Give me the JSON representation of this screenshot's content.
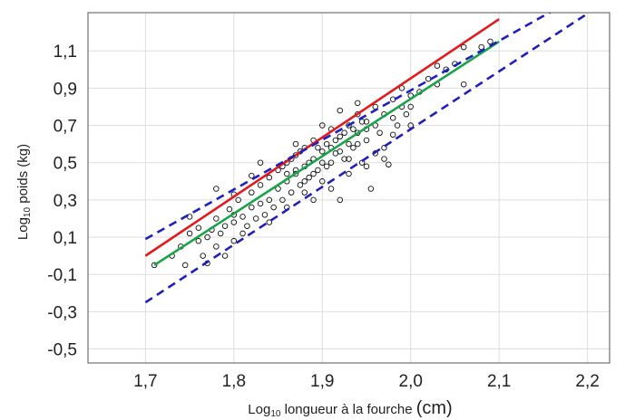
{
  "chart_data": {
    "type": "scatter",
    "xlabel": {
      "prefix": "Log",
      "sub": "10",
      "text": " longueur à la fourche ",
      "unit": "(cm)"
    },
    "ylabel": {
      "prefix": "Log",
      "sub": "10",
      "text": " poids (kg)"
    },
    "xlim": [
      1.635,
      2.225
    ],
    "ylim": [
      -0.575,
      1.305
    ],
    "x_ticks": [
      "1,7",
      "1,8",
      "1,9",
      "2,0",
      "2,1",
      "2,2"
    ],
    "x_tick_values": [
      1.7,
      1.8,
      1.9,
      2.0,
      2.1,
      2.2
    ],
    "y_ticks": [
      "1,1",
      "0,9",
      "0,7",
      "0,5",
      "0,3",
      "0,1",
      "-0,1",
      "-0,3",
      "-0,5"
    ],
    "y_tick_values": [
      1.1,
      0.9,
      0.7,
      0.5,
      0.3,
      0.1,
      -0.1,
      -0.3,
      -0.5
    ],
    "grid": true,
    "colors": {
      "red_line": "#e31a1c",
      "green_line": "#1aa34a",
      "dashed_lines": "#1f1fbf",
      "points": "#111111",
      "grid": "#dddddd",
      "frame": "#555555"
    },
    "lines": [
      {
        "style": "solid",
        "color": "#e31a1c",
        "x": [
          1.7,
          2.1
        ],
        "y": [
          0.0,
          1.27
        ]
      },
      {
        "style": "solid",
        "color": "#1aa34a",
        "x": [
          1.71,
          2.1
        ],
        "y": [
          -0.05,
          1.15
        ]
      },
      {
        "style": "dashed",
        "color": "#1f1fbf",
        "x": [
          1.7,
          2.17
        ],
        "y": [
          0.09,
          1.34
        ]
      },
      {
        "style": "dashed",
        "color": "#1f1fbf",
        "x": [
          1.7,
          2.2
        ],
        "y": [
          -0.25,
          1.3
        ]
      }
    ],
    "points": [
      [
        1.71,
        -0.05
      ],
      [
        1.73,
        0.0
      ],
      [
        1.74,
        0.05
      ],
      [
        1.745,
        -0.05
      ],
      [
        1.75,
        0.12
      ],
      [
        1.75,
        0.21
      ],
      [
        1.76,
        0.08
      ],
      [
        1.765,
        0.0
      ],
      [
        1.77,
        0.1
      ],
      [
        1.77,
        -0.04
      ],
      [
        1.775,
        0.14
      ],
      [
        1.78,
        0.05
      ],
      [
        1.78,
        0.2
      ],
      [
        1.785,
        0.12
      ],
      [
        1.79,
        0.0
      ],
      [
        1.79,
        0.16
      ],
      [
        1.795,
        0.25
      ],
      [
        1.8,
        0.08
      ],
      [
        1.8,
        0.18
      ],
      [
        1.8,
        0.22
      ],
      [
        1.805,
        0.3
      ],
      [
        1.81,
        0.12
      ],
      [
        1.81,
        0.21
      ],
      [
        1.815,
        0.16
      ],
      [
        1.82,
        0.26
      ],
      [
        1.82,
        0.34
      ],
      [
        1.825,
        0.2
      ],
      [
        1.83,
        0.28
      ],
      [
        1.83,
        0.38
      ],
      [
        1.835,
        0.22
      ],
      [
        1.84,
        0.3
      ],
      [
        1.84,
        0.42
      ],
      [
        1.845,
        0.26
      ],
      [
        1.85,
        0.36
      ],
      [
        1.85,
        0.46
      ],
      [
        1.855,
        0.3
      ],
      [
        1.86,
        0.4
      ],
      [
        1.86,
        0.5
      ],
      [
        1.865,
        0.34
      ],
      [
        1.87,
        0.44
      ],
      [
        1.87,
        0.54
      ],
      [
        1.875,
        0.38
      ],
      [
        1.88,
        0.48
      ],
      [
        1.88,
        0.58
      ],
      [
        1.885,
        0.42
      ],
      [
        1.89,
        0.52
      ],
      [
        1.89,
        0.62
      ],
      [
        1.895,
        0.46
      ],
      [
        1.9,
        0.56
      ],
      [
        1.9,
        0.4
      ],
      [
        1.905,
        0.6
      ],
      [
        1.91,
        0.5
      ],
      [
        1.91,
        0.68
      ],
      [
        1.915,
        0.55
      ],
      [
        1.92,
        0.64
      ],
      [
        1.92,
        0.3
      ],
      [
        1.925,
        0.52
      ],
      [
        1.93,
        0.7
      ],
      [
        1.93,
        0.6
      ],
      [
        1.935,
        0.58
      ],
      [
        1.94,
        0.66
      ],
      [
        1.94,
        0.76
      ],
      [
        1.945,
        0.5
      ],
      [
        1.95,
        0.72
      ],
      [
        1.95,
        0.62
      ],
      [
        1.955,
        0.36
      ],
      [
        1.96,
        0.7
      ],
      [
        1.96,
        0.8
      ],
      [
        1.965,
        0.66
      ],
      [
        1.97,
        0.76
      ],
      [
        1.97,
        0.58
      ],
      [
        1.975,
        0.49
      ],
      [
        1.98,
        0.74
      ],
      [
        1.98,
        0.84
      ],
      [
        1.985,
        0.7
      ],
      [
        1.99,
        0.8
      ],
      [
        1.99,
        0.9
      ],
      [
        1.995,
        0.76
      ],
      [
        2.0,
        0.86
      ],
      [
        2.0,
        0.8
      ],
      [
        2.01,
        0.88
      ],
      [
        2.02,
        0.95
      ],
      [
        2.03,
        1.02
      ],
      [
        2.03,
        0.92
      ],
      [
        2.04,
        1.0
      ],
      [
        2.05,
        1.03
      ],
      [
        2.06,
        1.12
      ],
      [
        2.06,
        0.92
      ],
      [
        2.08,
        1.12
      ],
      [
        2.09,
        1.15
      ],
      [
        1.76,
        0.15
      ],
      [
        1.78,
        0.36
      ],
      [
        1.8,
        0.33
      ],
      [
        1.82,
        0.43
      ],
      [
        1.84,
        0.18
      ],
      [
        1.86,
        0.26
      ],
      [
        1.88,
        0.34
      ],
      [
        1.9,
        0.7
      ],
      [
        1.92,
        0.78
      ],
      [
        1.94,
        0.82
      ],
      [
        1.96,
        0.55
      ],
      [
        1.98,
        0.65
      ],
      [
        2.0,
        0.7
      ],
      [
        1.83,
        0.5
      ],
      [
        1.87,
        0.6
      ],
      [
        1.89,
        0.3
      ],
      [
        1.91,
        0.36
      ],
      [
        1.93,
        0.44
      ],
      [
        1.95,
        0.48
      ],
      [
        1.97,
        0.52
      ],
      [
        1.855,
        0.48
      ],
      [
        1.865,
        0.52
      ],
      [
        1.875,
        0.56
      ],
      [
        1.885,
        0.5
      ],
      [
        1.895,
        0.58
      ],
      [
        1.905,
        0.48
      ],
      [
        1.915,
        0.62
      ],
      [
        1.925,
        0.66
      ],
      [
        1.935,
        0.68
      ],
      [
        1.945,
        0.72
      ],
      [
        1.86,
        0.44
      ],
      [
        1.87,
        0.46
      ],
      [
        1.88,
        0.4
      ],
      [
        1.89,
        0.44
      ],
      [
        1.9,
        0.5
      ],
      [
        1.91,
        0.58
      ],
      [
        1.92,
        0.56
      ],
      [
        1.93,
        0.52
      ],
      [
        1.94,
        0.6
      ],
      [
        1.95,
        0.68
      ]
    ]
  }
}
